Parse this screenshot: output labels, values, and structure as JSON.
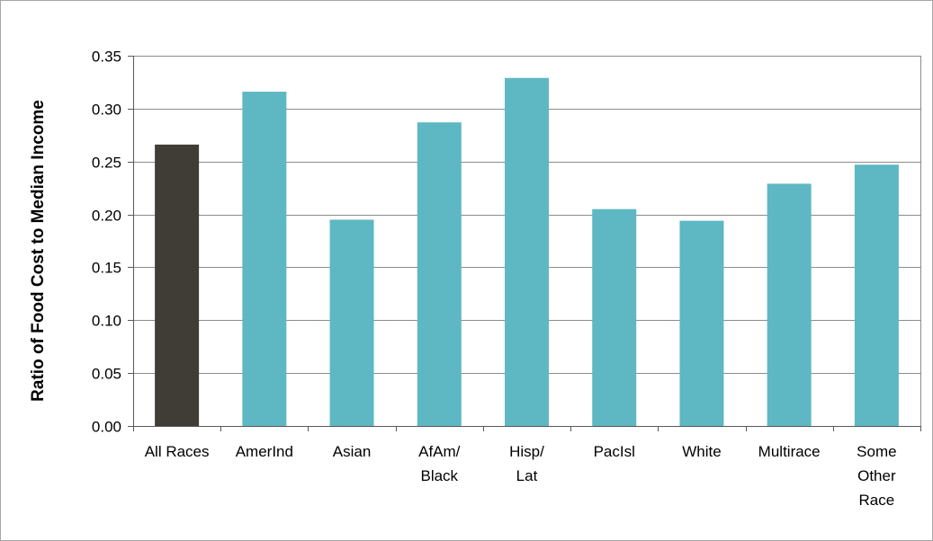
{
  "chart_data": {
    "type": "bar",
    "title": "",
    "xlabel": "",
    "ylabel": "Ratio of Food Cost to Median Income",
    "ylim": [
      0,
      0.35
    ],
    "yticks": [
      "0.00",
      "0.05",
      "0.10",
      "0.15",
      "0.20",
      "0.25",
      "0.30",
      "0.35"
    ],
    "grid": true,
    "categories": [
      [
        "All Races"
      ],
      [
        "AmerInd"
      ],
      [
        "Asian"
      ],
      [
        "AfAm/",
        "Black"
      ],
      [
        "Hisp/",
        "Lat"
      ],
      [
        "PacIsl"
      ],
      [
        "White"
      ],
      [
        "Multirace"
      ],
      [
        "Some",
        "Other",
        "Race"
      ]
    ],
    "values": [
      0.266,
      0.316,
      0.195,
      0.287,
      0.329,
      0.205,
      0.194,
      0.229,
      0.247
    ],
    "colors": {
      "highlight": "#403c36",
      "bar": "#5eb8c3",
      "grid": "#8c8c8c",
      "axis": "#595959"
    }
  }
}
